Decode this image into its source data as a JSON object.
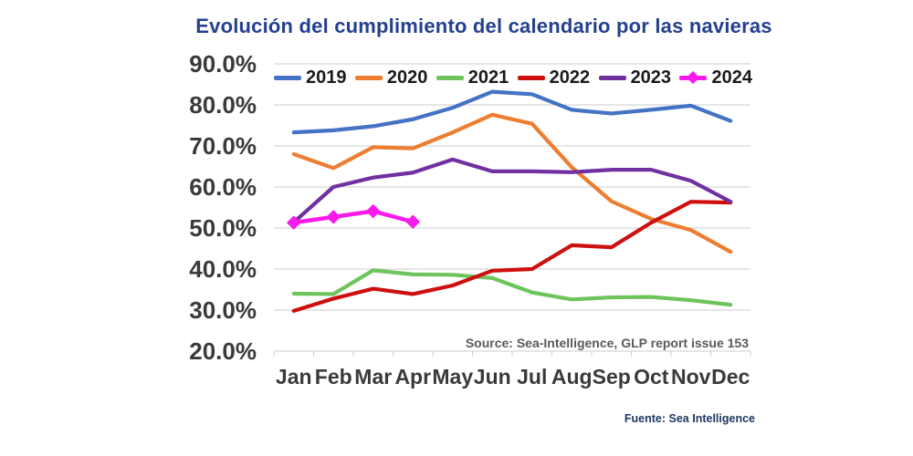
{
  "source_note": "Source: Sea-Intelligence, GLP report issue 153",
  "footer_note": "Fuente: Sea Intelligence",
  "colors": {
    "title": "#24408E",
    "footer": "#1F3864",
    "source_note": "#595959",
    "gridline": "#D6D6D6",
    "axis_tick": "#D8D8D8",
    "axis_text": "#3A3A3A"
  },
  "chart_data": {
    "type": "line",
    "title": "Evolución del cumplimiento del calendario por las navieras",
    "categories": [
      "Jan",
      "Feb",
      "Mar",
      "Apr",
      "May",
      "Jun",
      "Jul",
      "Aug",
      "Sep",
      "Oct",
      "Nov",
      "Dec"
    ],
    "y_ticks": [
      "90.0%",
      "80.0%",
      "70.0%",
      "60.0%",
      "50.0%",
      "40.0%",
      "30.0%",
      "20.0%"
    ],
    "y_tick_values": [
      90,
      80,
      70,
      60,
      50,
      40,
      30,
      20
    ],
    "ylim": [
      20,
      90
    ],
    "xlabel": "",
    "ylabel": "",
    "grid": true,
    "legend_position": "top",
    "series": [
      {
        "name": "2019",
        "color": "#4472C4",
        "marker": "none",
        "values": [
          73.3,
          73.8,
          74.8,
          76.5,
          79.3,
          83.2,
          82.6,
          78.8,
          77.9,
          78.8,
          79.8,
          76.1
        ]
      },
      {
        "name": "2020",
        "color": "#ED7D31",
        "marker": "none",
        "values": [
          68.0,
          64.6,
          69.7,
          69.4,
          73.3,
          77.6,
          75.4,
          64.8,
          56.5,
          52.2,
          49.5,
          44.2
        ]
      },
      {
        "name": "2021",
        "color": "#6EC45C",
        "marker": "none",
        "values": [
          34.0,
          33.9,
          39.7,
          38.7,
          38.6,
          37.8,
          34.3,
          32.6,
          33.1,
          33.2,
          32.4,
          31.3
        ]
      },
      {
        "name": "2022",
        "color": "#CE0F0F",
        "marker": "none",
        "values": [
          29.8,
          32.8,
          35.2,
          33.9,
          36.0,
          39.6,
          40.0,
          45.8,
          45.3,
          51.3,
          56.4,
          56.2
        ]
      },
      {
        "name": "2023",
        "color": "#7030A0",
        "marker": "none",
        "values": [
          51.4,
          60.0,
          62.3,
          63.5,
          66.7,
          63.8,
          63.8,
          63.6,
          64.2,
          64.2,
          61.5,
          56.4
        ]
      },
      {
        "name": "2024",
        "color": "#F81AE9",
        "marker": "diamond",
        "values": [
          51.3,
          52.7,
          54.1,
          51.5
        ]
      }
    ]
  }
}
